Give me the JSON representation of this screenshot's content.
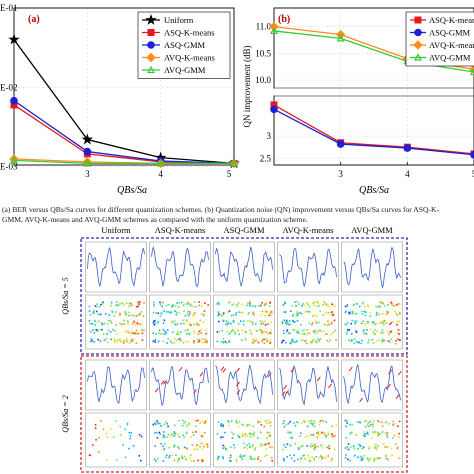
{
  "chart_data": [
    {
      "type": "line",
      "panel_label": "(a)",
      "xlabel": "QBs/Sa",
      "ylabel": "",
      "x": [
        2,
        3,
        4,
        5
      ],
      "xticks": [
        "3",
        "4",
        "5"
      ],
      "yscale": "log",
      "yticks": [
        "E-01",
        "E-02",
        "E-03"
      ],
      "grid": true,
      "legend_position": "top-right",
      "series": [
        {
          "name": "Uniform",
          "color": "#000000",
          "marker": "star",
          "values": [
            0.04,
            0.0022,
            0.0013,
            0.0011
          ]
        },
        {
          "name": "ASQ-K-means",
          "color": "#e41a1c",
          "marker": "square",
          "values": [
            0.006,
            0.00145,
            0.00115,
            0.0011
          ]
        },
        {
          "name": "ASQ-GMM",
          "color": "#1f1fd6",
          "marker": "circle",
          "values": [
            0.0068,
            0.00155,
            0.00118,
            0.0011
          ]
        },
        {
          "name": "AVQ-K-means",
          "color": "#ff8c1a",
          "marker": "diamond",
          "values": [
            0.00125,
            0.00115,
            0.0011,
            0.0011
          ]
        },
        {
          "name": "AVQ-GMM",
          "color": "#33cc33",
          "marker": "triangle",
          "values": [
            0.0012,
            0.0011,
            0.0011,
            0.0011
          ]
        }
      ]
    },
    {
      "type": "line",
      "panel_label": "(b)",
      "xlabel": "QBs/Sa",
      "ylabel": "QN improvement (dB)",
      "x": [
        2,
        3,
        4,
        5
      ],
      "xticks": [
        "3",
        "4",
        "5"
      ],
      "yticks": [
        "2.5",
        "3",
        "10.0",
        "10.5",
        "11.0"
      ],
      "grid": true,
      "legend_position": "top-right",
      "series": [
        {
          "name": "ASQ-K-means",
          "color": "#e41a1c",
          "marker": "square",
          "values": [
            3.7,
            2.85,
            2.75,
            2.6
          ]
        },
        {
          "name": "ASQ-GMM",
          "color": "#1f1fd6",
          "marker": "circle",
          "values": [
            3.6,
            2.82,
            2.73,
            2.58
          ]
        },
        {
          "name": "AVQ-K-means",
          "color": "#ff8c1a",
          "marker": "diamond",
          "values": [
            11.0,
            10.85,
            10.4,
            10.2
          ]
        },
        {
          "name": "AVQ-GMM",
          "color": "#33cc33",
          "marker": "triangle",
          "values": [
            10.92,
            10.78,
            10.35,
            10.15
          ]
        }
      ]
    }
  ],
  "caption": {
    "line1": "(a) BER versus QBs/Sa curves for different quantization schemes. (b) Quantization noise (QN) improvement versus QBs/Sa curves for ASQ-K-",
    "line2": "GMM, AVQ-K-means and AVQ-GMM schemes as compared with the uniform quantization scheme."
  },
  "grid_figure": {
    "columns": [
      "Uniform",
      "ASQ-K-means",
      "ASQ-GMM",
      "AVQ-K-means",
      "AVQ-GMM"
    ],
    "rows": [
      {
        "label": "QBs/Sa = 5",
        "box_color": "#2a2ab8"
      },
      {
        "label": "QBs/Sa = 2",
        "box_color": "#d62728"
      }
    ]
  }
}
